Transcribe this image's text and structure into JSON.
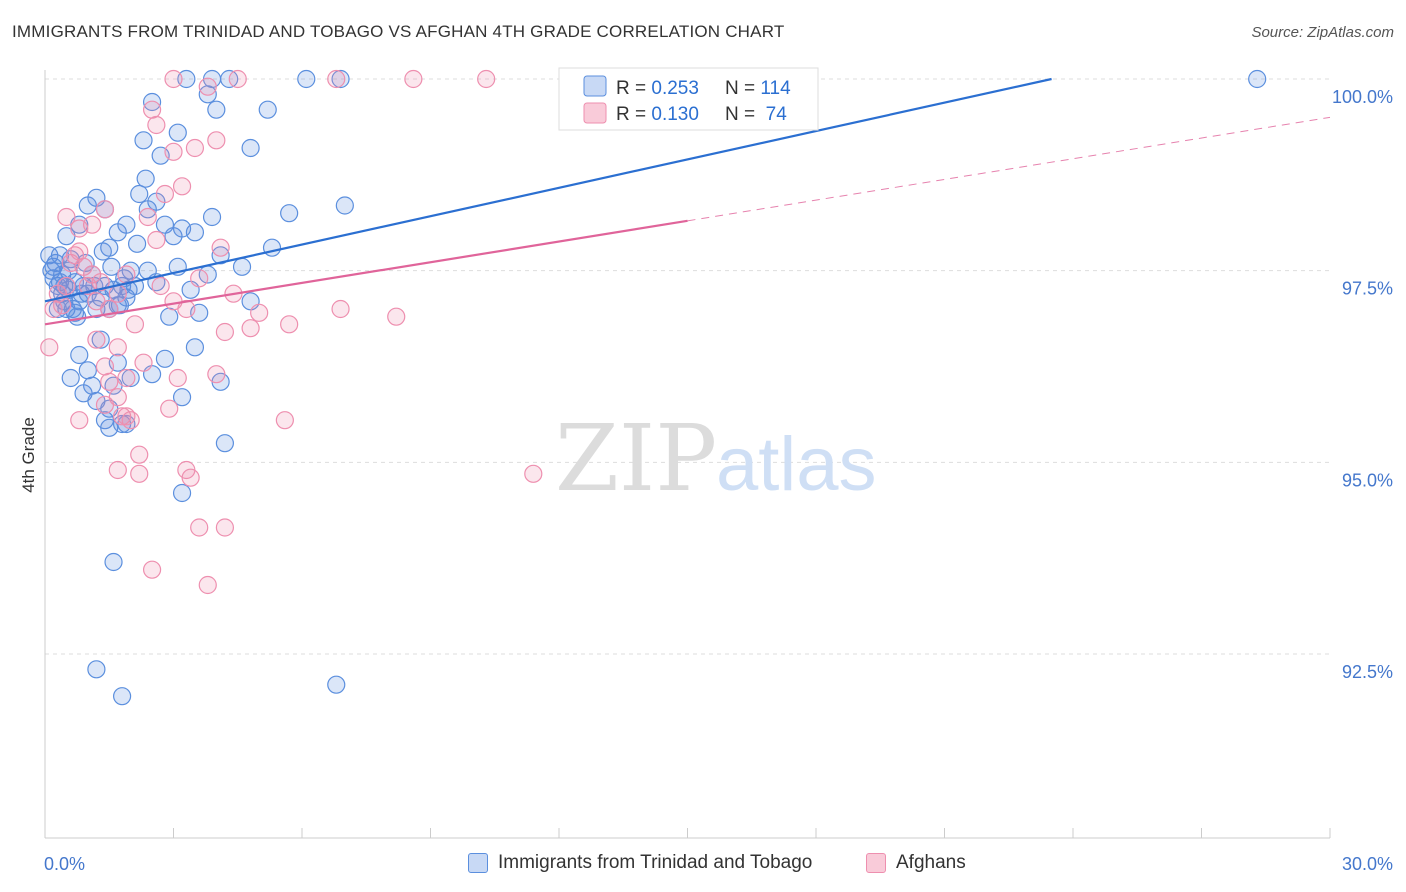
{
  "chart_data": {
    "type": "scatter",
    "title": "IMMIGRANTS FROM TRINIDAD AND TOBAGO VS AFGHAN 4TH GRADE CORRELATION CHART",
    "source": "Source: ZipAtlas.com",
    "xlabel": "",
    "ylabel": "4th Grade",
    "xlim": [
      0,
      30
    ],
    "ylim": [
      90.2,
      100.4
    ],
    "x_tick_labels": [
      "0.0%",
      "30.0%"
    ],
    "y_ticks": [
      92.5,
      95.0,
      97.5,
      100.0
    ],
    "y_tick_labels": [
      "92.5%",
      "95.0%",
      "97.5%",
      "100.0%"
    ],
    "watermark": {
      "zip": "ZIP",
      "atlas": "atlas"
    },
    "stats_legend": [
      {
        "r_label": "R = ",
        "r_value": "0.253",
        "n_label": "N = ",
        "n_value": "114"
      },
      {
        "r_label": "R = ",
        "r_value": "0.130",
        "n_label": "N = ",
        "n_value": " 74"
      }
    ],
    "colors": {
      "blue": "#5b8fde",
      "blue_line": "#2b6fd1",
      "pink": "#ee8faf",
      "pink_line": "#e0649a",
      "axis_text": "#4477cc",
      "grid": "#dddddd"
    },
    "series": [
      {
        "name": "Immigrants from Trinidad and Tobago",
        "color": "#5b8fde",
        "trend": {
          "x0": 0.0,
          "y0": 97.1,
          "x1": 23.5,
          "y1": 100.0,
          "dash_to": null
        },
        "points": [
          [
            0.1,
            97.7
          ],
          [
            0.15,
            97.5
          ],
          [
            0.2,
            97.4
          ],
          [
            0.25,
            97.6
          ],
          [
            0.3,
            97.3
          ],
          [
            0.35,
            97.35
          ],
          [
            0.4,
            97.2
          ],
          [
            0.45,
            97.1
          ],
          [
            0.5,
            97.0
          ],
          [
            0.55,
            97.25
          ],
          [
            0.6,
            97.65
          ],
          [
            0.7,
            97.35
          ],
          [
            0.8,
            97.1
          ],
          [
            0.9,
            97.3
          ],
          [
            1.0,
            97.2
          ],
          [
            1.1,
            97.45
          ],
          [
            1.2,
            97.0
          ],
          [
            1.3,
            97.15
          ],
          [
            1.4,
            97.3
          ],
          [
            1.5,
            97.0
          ],
          [
            1.6,
            97.25
          ],
          [
            1.7,
            97.05
          ],
          [
            1.8,
            97.3
          ],
          [
            1.9,
            97.15
          ],
          [
            2.0,
            97.5
          ],
          [
            0.3,
            97.0
          ],
          [
            0.4,
            97.45
          ],
          [
            0.6,
            96.1
          ],
          [
            0.7,
            96.95
          ],
          [
            0.8,
            96.4
          ],
          [
            0.9,
            95.9
          ],
          [
            1.0,
            96.2
          ],
          [
            1.1,
            96.0
          ],
          [
            1.2,
            95.8
          ],
          [
            1.3,
            96.6
          ],
          [
            1.4,
            95.55
          ],
          [
            1.5,
            95.7
          ],
          [
            1.6,
            96.0
          ],
          [
            1.7,
            96.3
          ],
          [
            1.8,
            95.5
          ],
          [
            0.5,
            97.95
          ],
          [
            0.8,
            98.1
          ],
          [
            1.0,
            98.35
          ],
          [
            1.2,
            98.45
          ],
          [
            1.4,
            98.3
          ],
          [
            1.5,
            97.8
          ],
          [
            1.7,
            98.0
          ],
          [
            1.9,
            98.1
          ],
          [
            2.2,
            98.5
          ],
          [
            2.4,
            98.3
          ],
          [
            2.6,
            98.4
          ],
          [
            2.8,
            98.1
          ],
          [
            3.0,
            97.95
          ],
          [
            3.2,
            98.05
          ],
          [
            3.5,
            98.0
          ],
          [
            3.9,
            98.2
          ],
          [
            2.3,
            99.2
          ],
          [
            2.5,
            99.7
          ],
          [
            2.7,
            99.0
          ],
          [
            3.1,
            99.3
          ],
          [
            3.8,
            99.8
          ],
          [
            4.0,
            99.6
          ],
          [
            4.8,
            99.1
          ],
          [
            5.2,
            99.6
          ],
          [
            3.3,
            100.0
          ],
          [
            3.9,
            100.0
          ],
          [
            4.3,
            100.0
          ],
          [
            6.1,
            100.0
          ],
          [
            6.9,
            100.0
          ],
          [
            28.3,
            100.0
          ],
          [
            2.1,
            97.3
          ],
          [
            2.4,
            97.5
          ],
          [
            2.6,
            97.35
          ],
          [
            2.9,
            96.9
          ],
          [
            3.1,
            97.55
          ],
          [
            3.4,
            97.25
          ],
          [
            3.6,
            96.95
          ],
          [
            3.8,
            97.45
          ],
          [
            4.1,
            97.7
          ],
          [
            4.6,
            97.55
          ],
          [
            4.8,
            97.1
          ],
          [
            5.3,
            97.8
          ],
          [
            5.7,
            98.25
          ],
          [
            7.0,
            98.35
          ],
          [
            2.0,
            96.1
          ],
          [
            2.5,
            96.15
          ],
          [
            2.8,
            96.35
          ],
          [
            3.2,
            95.85
          ],
          [
            3.5,
            96.5
          ],
          [
            4.1,
            96.05
          ],
          [
            1.9,
            95.5
          ],
          [
            1.5,
            95.45
          ],
          [
            3.2,
            94.6
          ],
          [
            4.2,
            95.25
          ],
          [
            1.6,
            93.7
          ],
          [
            1.2,
            92.3
          ],
          [
            1.8,
            91.95
          ],
          [
            6.8,
            92.1
          ],
          [
            0.2,
            97.55
          ],
          [
            0.35,
            97.7
          ],
          [
            0.45,
            97.3
          ],
          [
            0.55,
            97.5
          ],
          [
            0.65,
            97.0
          ],
          [
            0.75,
            96.9
          ],
          [
            0.85,
            97.2
          ],
          [
            0.95,
            97.6
          ],
          [
            1.15,
            97.3
          ],
          [
            1.35,
            97.75
          ],
          [
            1.55,
            97.55
          ],
          [
            1.75,
            97.05
          ],
          [
            1.85,
            97.4
          ],
          [
            1.95,
            97.25
          ],
          [
            2.15,
            97.85
          ],
          [
            2.35,
            98.7
          ]
        ]
      },
      {
        "name": "Afghans",
        "color": "#ee8faf",
        "trend": {
          "x0": 0.0,
          "y0": 96.8,
          "x1": 15.0,
          "y1": 98.15,
          "dash_to": {
            "x": 30.0,
            "y": 99.5
          }
        },
        "points": [
          [
            0.1,
            96.5
          ],
          [
            0.2,
            97.0
          ],
          [
            0.3,
            97.2
          ],
          [
            0.4,
            97.05
          ],
          [
            0.5,
            97.3
          ],
          [
            0.6,
            97.6
          ],
          [
            0.7,
            97.7
          ],
          [
            0.8,
            97.75
          ],
          [
            0.9,
            97.55
          ],
          [
            1.0,
            97.3
          ],
          [
            1.1,
            97.45
          ],
          [
            1.2,
            97.1
          ],
          [
            1.3,
            97.35
          ],
          [
            1.5,
            97.0
          ],
          [
            1.7,
            97.2
          ],
          [
            1.9,
            97.45
          ],
          [
            0.5,
            98.2
          ],
          [
            0.8,
            98.05
          ],
          [
            1.1,
            98.1
          ],
          [
            1.4,
            98.3
          ],
          [
            2.4,
            98.2
          ],
          [
            2.8,
            98.5
          ],
          [
            3.2,
            98.6
          ],
          [
            2.5,
            99.6
          ],
          [
            2.6,
            99.4
          ],
          [
            3.0,
            99.05
          ],
          [
            3.5,
            99.1
          ],
          [
            4.0,
            99.2
          ],
          [
            3.8,
            99.9
          ],
          [
            3.0,
            100.0
          ],
          [
            4.5,
            100.0
          ],
          [
            6.8,
            100.0
          ],
          [
            8.6,
            100.0
          ],
          [
            10.3,
            100.0
          ],
          [
            2.7,
            97.3
          ],
          [
            3.0,
            97.1
          ],
          [
            3.3,
            97.0
          ],
          [
            3.6,
            97.4
          ],
          [
            4.1,
            97.8
          ],
          [
            4.4,
            97.2
          ],
          [
            2.6,
            97.9
          ],
          [
            1.2,
            96.6
          ],
          [
            1.4,
            96.25
          ],
          [
            1.5,
            96.05
          ],
          [
            1.7,
            96.5
          ],
          [
            1.9,
            96.1
          ],
          [
            2.1,
            96.8
          ],
          [
            2.3,
            96.3
          ],
          [
            4.0,
            96.15
          ],
          [
            3.1,
            96.1
          ],
          [
            2.9,
            95.7
          ],
          [
            1.4,
            95.75
          ],
          [
            1.7,
            95.85
          ],
          [
            1.8,
            95.6
          ],
          [
            2.0,
            95.55
          ],
          [
            0.8,
            95.55
          ],
          [
            1.9,
            95.6
          ],
          [
            2.2,
            95.1
          ],
          [
            2.2,
            94.85
          ],
          [
            3.3,
            94.9
          ],
          [
            3.4,
            94.8
          ],
          [
            1.7,
            94.9
          ],
          [
            3.6,
            94.15
          ],
          [
            4.2,
            94.15
          ],
          [
            2.5,
            93.6
          ],
          [
            3.8,
            93.4
          ],
          [
            5.6,
            95.55
          ],
          [
            11.4,
            94.85
          ],
          [
            4.2,
            96.7
          ],
          [
            4.8,
            96.75
          ],
          [
            5.7,
            96.8
          ],
          [
            8.2,
            96.9
          ],
          [
            6.9,
            97.0
          ],
          [
            5.0,
            96.95
          ]
        ]
      }
    ]
  }
}
